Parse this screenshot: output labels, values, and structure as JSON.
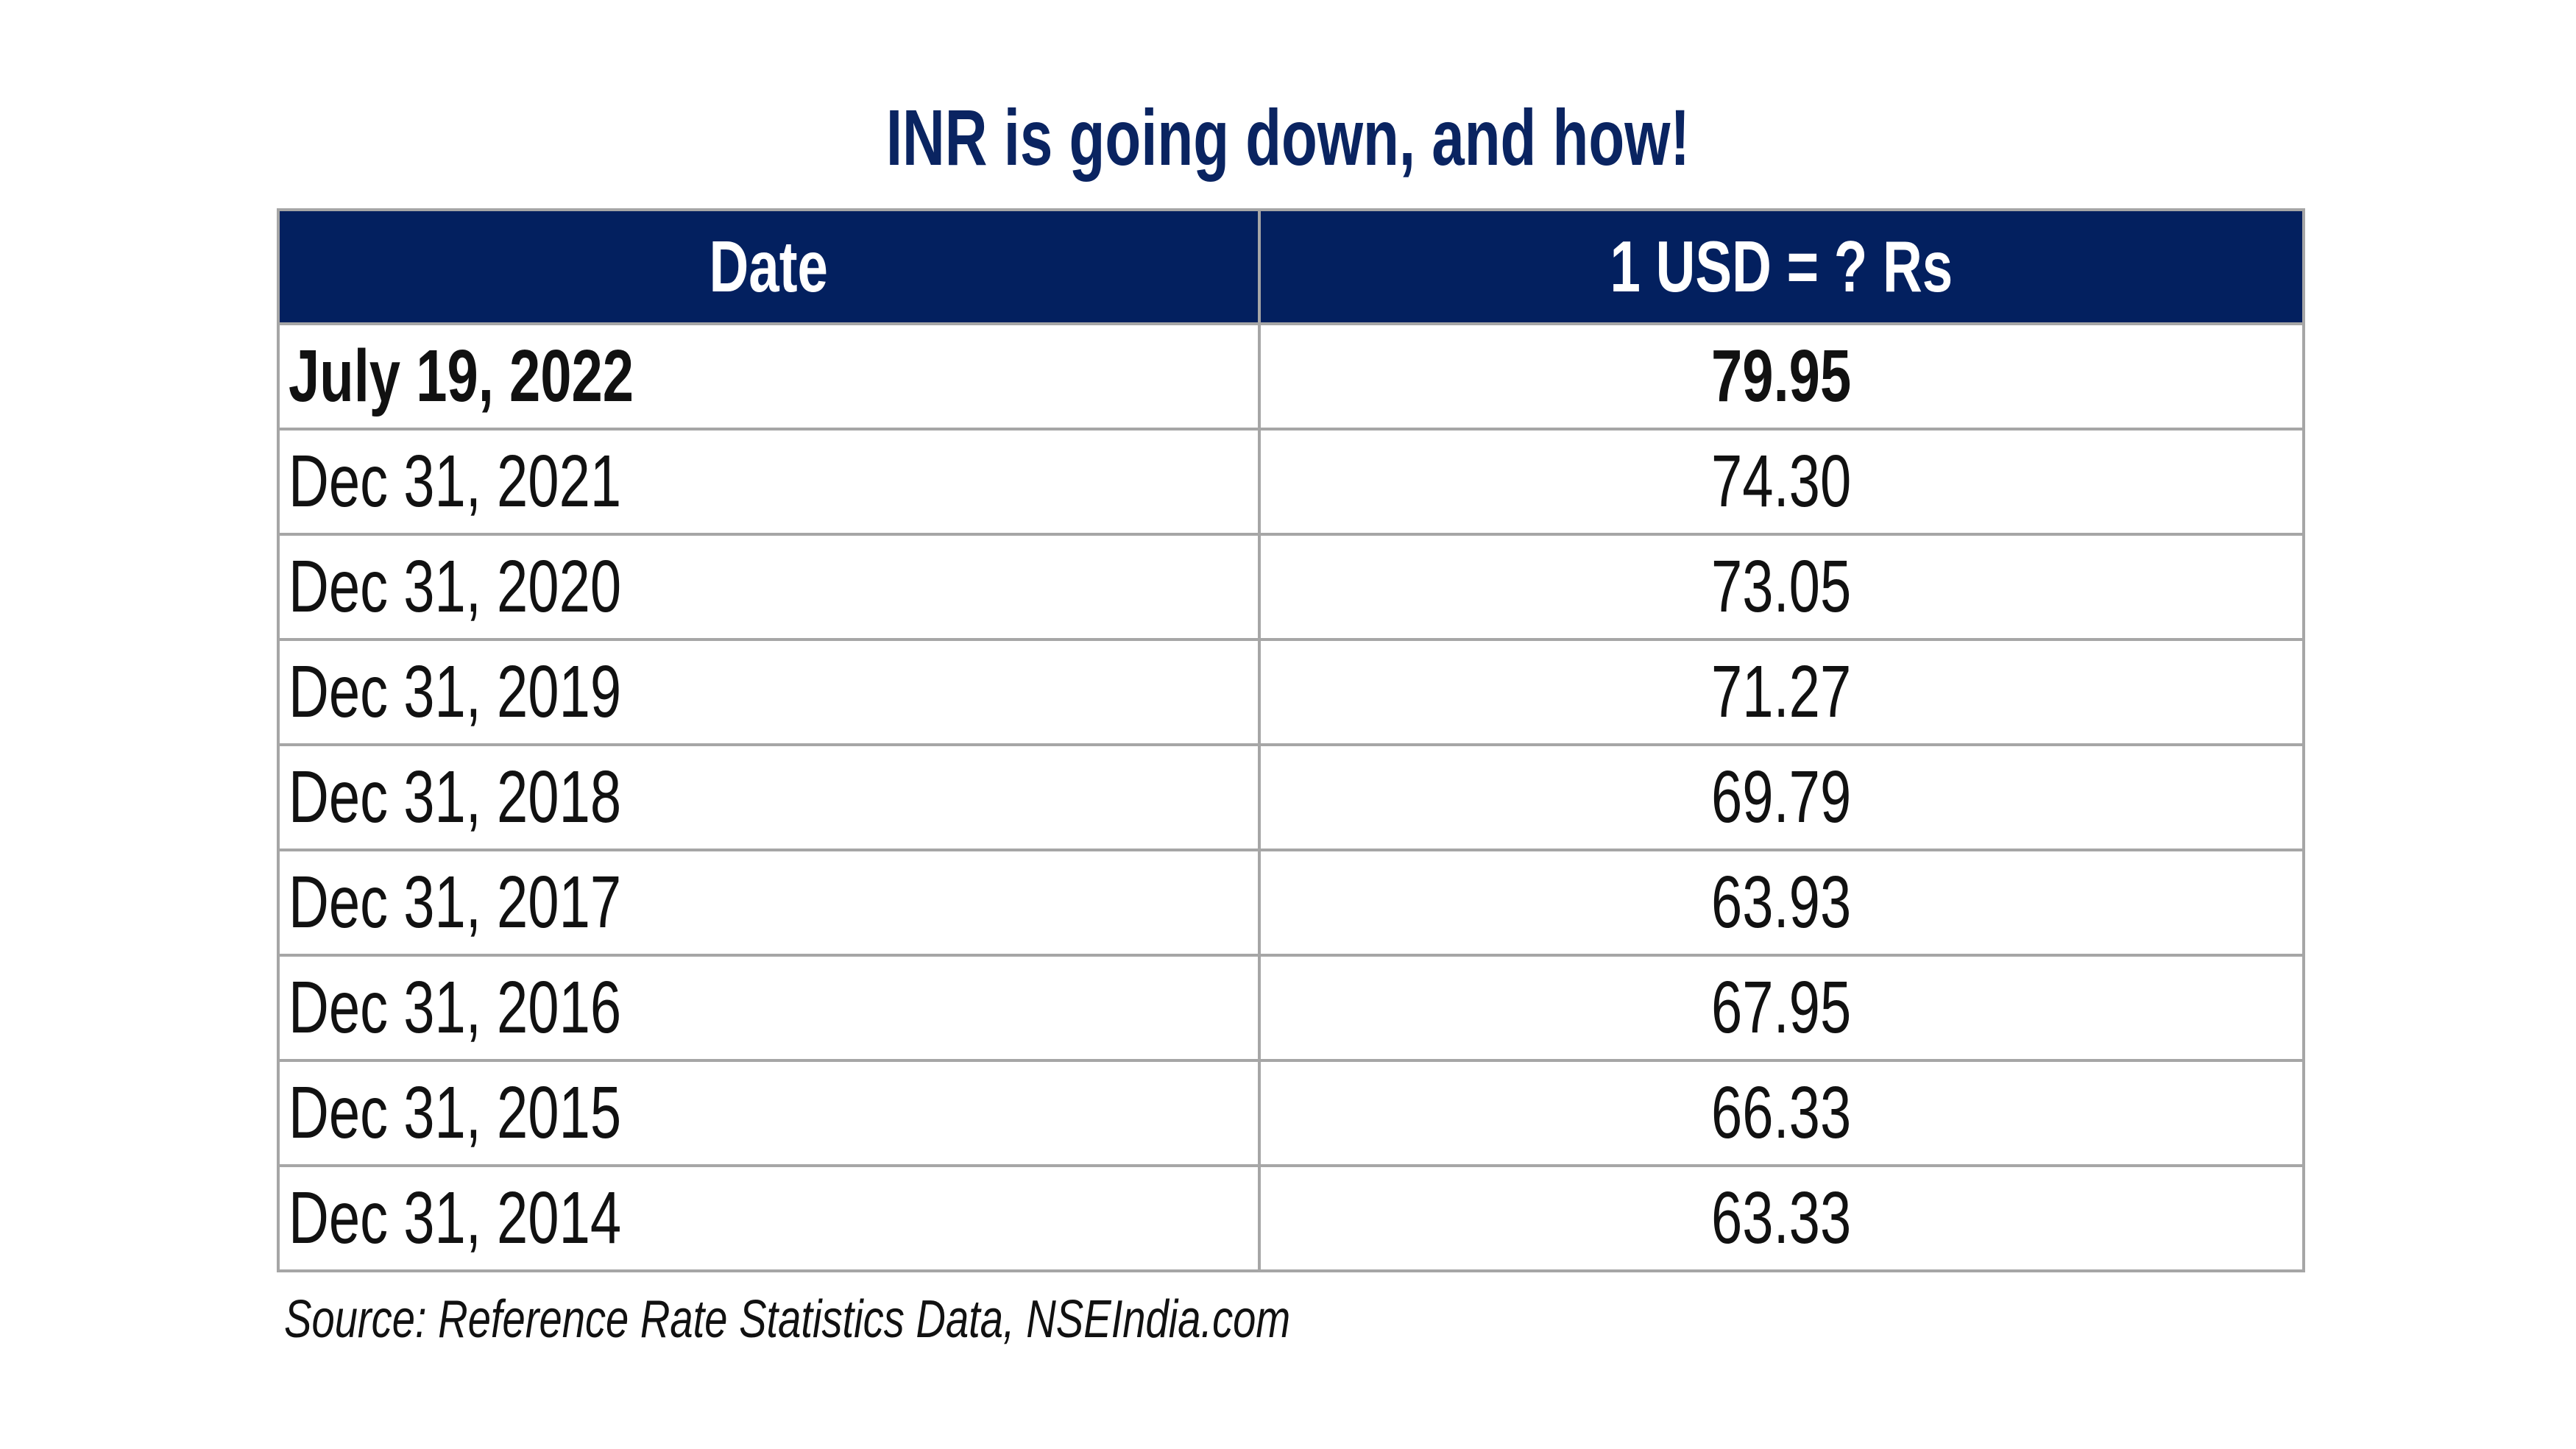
{
  "title": "INR is going down, and how!",
  "table": {
    "headers": [
      "Date",
      "1 USD = ? Rs"
    ],
    "rows": [
      {
        "date": "July 19, 2022",
        "value": "79.95",
        "highlight": true
      },
      {
        "date": "Dec 31, 2021",
        "value": "74.30"
      },
      {
        "date": "Dec 31, 2020",
        "value": "73.05"
      },
      {
        "date": "Dec 31, 2019",
        "value": "71.27"
      },
      {
        "date": "Dec 31, 2018",
        "value": "69.79"
      },
      {
        "date": "Dec 31, 2017",
        "value": "63.93"
      },
      {
        "date": "Dec 31, 2016",
        "value": "67.95"
      },
      {
        "date": "Dec 31, 2015",
        "value": "66.33"
      },
      {
        "date": "Dec 31, 2014",
        "value": "63.33"
      }
    ]
  },
  "source": "Source: Reference Rate Statistics Data, NSEIndia.com",
  "colors": {
    "title": "#0a2461",
    "header_bg": "#03205f",
    "header_text": "#ffffff",
    "border": "#a6a6a6",
    "text": "#111111"
  },
  "chart_data": {
    "type": "table",
    "title": "INR is going down, and how!",
    "columns": [
      "Date",
      "1 USD = ? Rs"
    ],
    "categories": [
      "July 19, 2022",
      "Dec 31, 2021",
      "Dec 31, 2020",
      "Dec 31, 2019",
      "Dec 31, 2018",
      "Dec 31, 2017",
      "Dec 31, 2016",
      "Dec 31, 2015",
      "Dec 31, 2014"
    ],
    "values": [
      79.95,
      74.3,
      73.05,
      71.27,
      69.79,
      63.93,
      67.95,
      66.33,
      63.33
    ],
    "annotations": [
      "Source: Reference Rate Statistics Data, NSEIndia.com"
    ],
    "highlighted_row": 0
  }
}
